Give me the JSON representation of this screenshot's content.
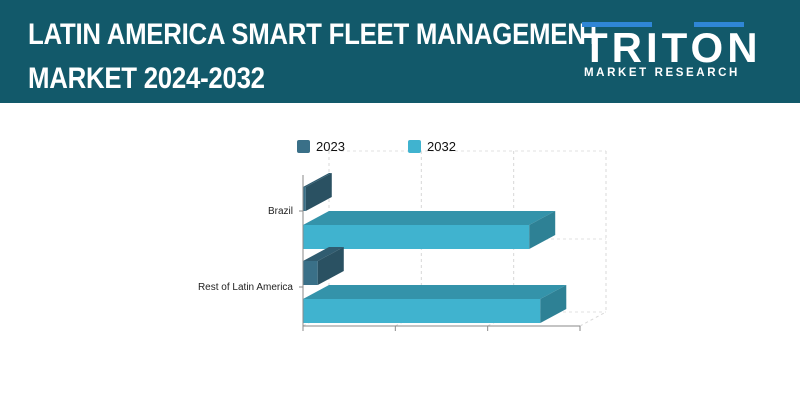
{
  "header": {
    "title_line1": "LATIN AMERICA SMART FLEET MANAGEMENT",
    "title_line2": "MARKET 2024-2032"
  },
  "logo": {
    "word": "TRITON",
    "tagline": "MARKET RESEARCH"
  },
  "colors": {
    "header_bg": "#12596a",
    "series_2023": "#3a7088",
    "series_2032": "#40b3cf",
    "logo_accent": "#2f86d6"
  },
  "chart_data": {
    "type": "bar",
    "orientation": "horizontal",
    "style": "3d",
    "categories": [
      "Brazil",
      "Rest of Latin America"
    ],
    "series": [
      {
        "name": "2023",
        "values": [
          0.3,
          1.6
        ],
        "color": "#3a7088"
      },
      {
        "name": "2032",
        "values": [
          24.5,
          25.7
        ],
        "color": "#40b3cf"
      }
    ],
    "xlim": [
      0,
      30
    ],
    "grid": true,
    "legend": "top",
    "title": "",
    "xlabel": "",
    "ylabel": ""
  }
}
